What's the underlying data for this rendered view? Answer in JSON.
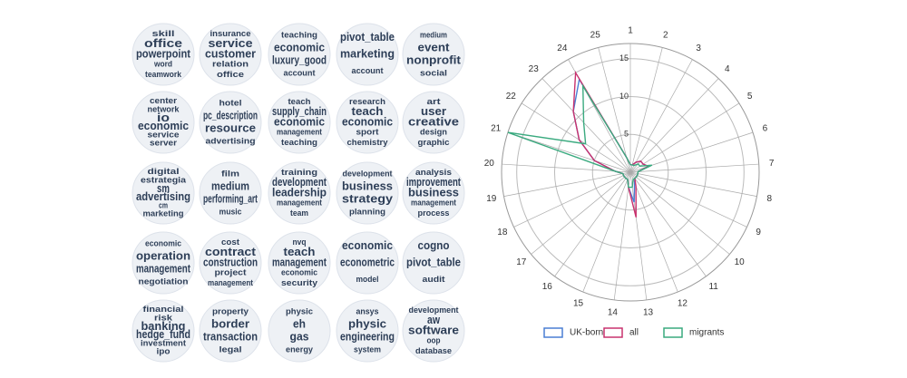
{
  "word_clouds": [
    {
      "words": [
        "skill",
        "office",
        "powerpoint",
        "word",
        "teamwork"
      ]
    },
    {
      "words": [
        "insurance",
        "service",
        "customer",
        "relation",
        "office"
      ]
    },
    {
      "words": [
        "teaching",
        "economic",
        "luxury_good",
        "account"
      ]
    },
    {
      "words": [
        "pivot_table",
        "marketing",
        "account"
      ]
    },
    {
      "words": [
        "medium",
        "event",
        "nonprofit",
        "social"
      ]
    },
    {
      "words": [
        "center",
        "network",
        "io",
        "economic",
        "service",
        "server"
      ]
    },
    {
      "words": [
        "hotel",
        "pc_description",
        "resource",
        "advertising"
      ]
    },
    {
      "words": [
        "teach",
        "supply_chain",
        "economic",
        "management",
        "teaching"
      ]
    },
    {
      "words": [
        "research",
        "teach",
        "economic",
        "sport",
        "chemistry"
      ]
    },
    {
      "words": [
        "art",
        "user",
        "creative",
        "design",
        "graphic"
      ]
    },
    {
      "words": [
        "digital",
        "estrategia",
        "sm",
        "advertising",
        "cm",
        "marketing"
      ]
    },
    {
      "words": [
        "film",
        "medium",
        "performing_art",
        "music"
      ]
    },
    {
      "words": [
        "training",
        "development",
        "leadership",
        "management",
        "team"
      ]
    },
    {
      "words": [
        "development",
        "business",
        "strategy",
        "planning"
      ]
    },
    {
      "words": [
        "analysis",
        "improvement",
        "business",
        "management",
        "process"
      ]
    },
    {
      "words": [
        "economic",
        "operation",
        "management",
        "negotiation"
      ]
    },
    {
      "words": [
        "cost",
        "contract",
        "construction",
        "project",
        "management"
      ]
    },
    {
      "words": [
        "nvq",
        "teach",
        "management",
        "economic",
        "security"
      ]
    },
    {
      "words": [
        "economic",
        "econometric",
        "model"
      ]
    },
    {
      "words": [
        "cogno",
        "pivot_table",
        "audit"
      ]
    },
    {
      "words": [
        "financial",
        "risk",
        "banking",
        "hedge_fund",
        "investment",
        "ipo"
      ]
    },
    {
      "words": [
        "property",
        "border",
        "transaction",
        "legal"
      ]
    },
    {
      "words": [
        "physic",
        "eh",
        "gas",
        "energy"
      ]
    },
    {
      "words": [
        "ansys",
        "physic",
        "engineering",
        "system"
      ]
    },
    {
      "words": [
        "development",
        "aw",
        "software",
        "oop",
        "database"
      ]
    }
  ],
  "chart_data": {
    "type": "radar",
    "categories": [
      "1",
      "2",
      "3",
      "4",
      "5",
      "6",
      "7",
      "8",
      "9",
      "10",
      "11",
      "12",
      "13",
      "14",
      "15",
      "16",
      "17",
      "18",
      "19",
      "20",
      "21",
      "22",
      "23",
      "24",
      "25"
    ],
    "rlim": [
      0,
      17
    ],
    "rticks": [
      5,
      10,
      15
    ],
    "grid": true,
    "legend": "bottom",
    "series": [
      {
        "name": "UK-born",
        "color": "#4a7fd4",
        "values": [
          1,
          1,
          1.5,
          2,
          2,
          2.5,
          1,
          1,
          1,
          1,
          1,
          1.5,
          4,
          2,
          1,
          1,
          1,
          1,
          1,
          2,
          5,
          8,
          11,
          14,
          2
        ]
      },
      {
        "name": "all",
        "color": "#c8326e",
        "values": [
          1,
          1,
          1.5,
          2,
          2,
          2.5,
          1,
          1,
          1,
          1,
          1,
          2,
          6,
          2,
          1,
          1,
          1,
          1,
          1,
          2,
          5,
          8,
          11,
          15,
          2
        ]
      },
      {
        "name": "migrants",
        "color": "#3aaa7f",
        "values": [
          1,
          1,
          1,
          1.5,
          1.5,
          3,
          1,
          1,
          1,
          1,
          1,
          1,
          2,
          2,
          1,
          1,
          1,
          1,
          1,
          2,
          17,
          7,
          9,
          13,
          2
        ]
      }
    ]
  }
}
